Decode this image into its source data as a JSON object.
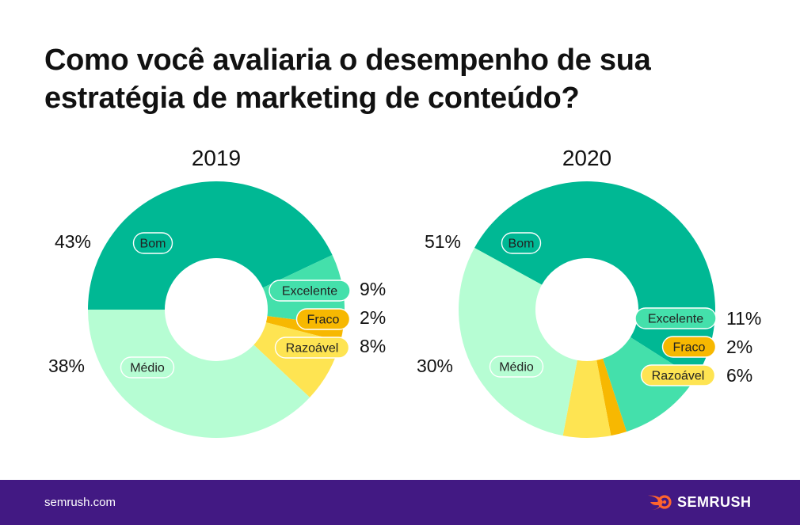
{
  "title_line1": "Como você avaliaria o desempenho de sua",
  "title_line2": "estratégia de marketing de conteúdo?",
  "colors": {
    "Bom": "#00b894",
    "Excelente": "#44e0ab",
    "Fraco": "#f7b801",
    "Razoável": "#fee452",
    "Médio": "#b6fdd3",
    "footer": "#421983",
    "logo": "#ff642d"
  },
  "chart_data": [
    {
      "type": "pie",
      "title": "2019",
      "slices": [
        {
          "label": "Bom",
          "value": 43,
          "value_label": "43%"
        },
        {
          "label": "Excelente",
          "value": 9,
          "value_label": "9%"
        },
        {
          "label": "Fraco",
          "value": 2,
          "value_label": "2%"
        },
        {
          "label": "Razoável",
          "value": 8,
          "value_label": "8%"
        },
        {
          "label": "Médio",
          "value": 38,
          "value_label": "38%"
        }
      ]
    },
    {
      "type": "pie",
      "title": "2020",
      "slices": [
        {
          "label": "Bom",
          "value": 51,
          "value_label": "51%"
        },
        {
          "label": "Excelente",
          "value": 11,
          "value_label": "11%"
        },
        {
          "label": "Fraco",
          "value": 2,
          "value_label": "2%"
        },
        {
          "label": "Razoável",
          "value": 6,
          "value_label": "6%"
        },
        {
          "label": "Médio",
          "value": 30,
          "value_label": "30%"
        }
      ]
    }
  ],
  "footer": {
    "site": "semrush.com",
    "brand": "SEMRUSH",
    "brand_icon": "semrush-fire-icon"
  }
}
